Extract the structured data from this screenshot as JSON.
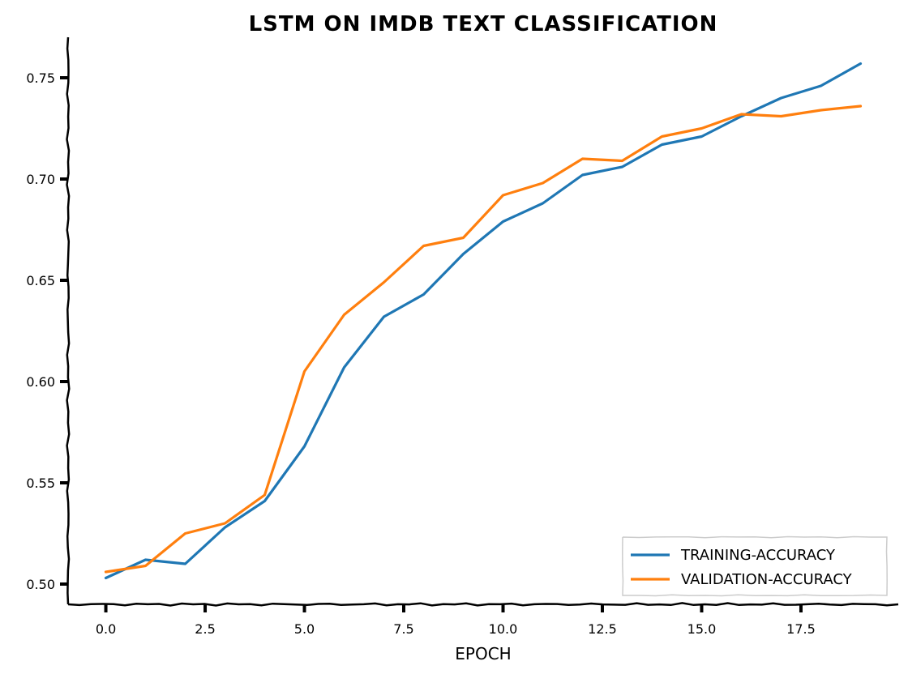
{
  "chart_data": {
    "type": "line",
    "title": "LSTM ON IMDB TEXT CLASSIFICATION",
    "xlabel": "EPOCH",
    "ylabel": "",
    "xlim": [
      -0.95,
      19.95
    ],
    "ylim": [
      0.49,
      0.77
    ],
    "xticks": [
      0.0,
      2.5,
      5.0,
      7.5,
      10.0,
      12.5,
      15.0,
      17.5
    ],
    "xtick_labels": [
      "0.0",
      "2.5",
      "5.0",
      "7.5",
      "10.0",
      "12.5",
      "15.0",
      "17.5"
    ],
    "yticks": [
      0.5,
      0.55,
      0.6,
      0.65,
      0.7,
      0.75
    ],
    "ytick_labels": [
      "0.50",
      "0.55",
      "0.60",
      "0.65",
      "0.70",
      "0.75"
    ],
    "grid": false,
    "legend_position": "bottom-right",
    "x": [
      0,
      1,
      2,
      3,
      4,
      5,
      6,
      7,
      8,
      9,
      10,
      11,
      12,
      13,
      14,
      15,
      16,
      17,
      18,
      19
    ],
    "series": [
      {
        "name": "TRAINING-ACCURACY",
        "color": "#1f77b4",
        "values": [
          0.503,
          0.512,
          0.51,
          0.528,
          0.541,
          0.568,
          0.607,
          0.632,
          0.643,
          0.663,
          0.679,
          0.688,
          0.702,
          0.706,
          0.717,
          0.721,
          0.731,
          0.74,
          0.746,
          0.757
        ]
      },
      {
        "name": "VALIDATION-ACCURACY",
        "color": "#ff7f0e",
        "values": [
          0.506,
          0.509,
          0.525,
          0.53,
          0.544,
          0.605,
          0.633,
          0.649,
          0.667,
          0.671,
          0.692,
          0.698,
          0.71,
          0.709,
          0.721,
          0.725,
          0.732,
          0.731,
          0.734,
          0.736
        ]
      }
    ]
  }
}
